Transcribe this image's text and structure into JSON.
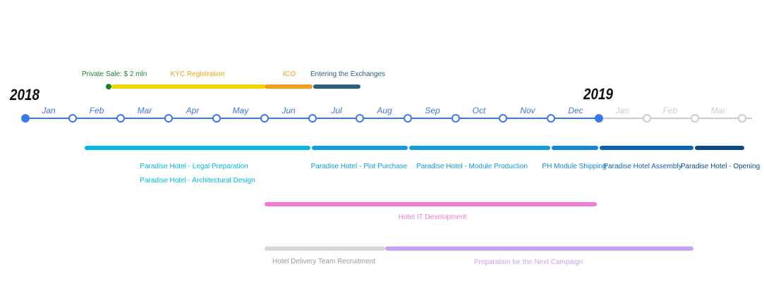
{
  "years": {
    "start": "2018",
    "end": "2019"
  },
  "months": [
    {
      "label": "Jan",
      "active": true
    },
    {
      "label": "Feb",
      "active": true
    },
    {
      "label": "Mar",
      "active": true
    },
    {
      "label": "Apr",
      "active": true
    },
    {
      "label": "May",
      "active": true
    },
    {
      "label": "Jun",
      "active": true
    },
    {
      "label": "Jul",
      "active": true
    },
    {
      "label": "Aug",
      "active": true
    },
    {
      "label": "Sep",
      "active": true
    },
    {
      "label": "Oct",
      "active": true
    },
    {
      "label": "Nov",
      "active": true
    },
    {
      "label": "Dec",
      "active": true
    },
    {
      "label": "Jan",
      "active": false
    },
    {
      "label": "Feb",
      "active": false
    },
    {
      "label": "Mar",
      "active": false
    }
  ],
  "colors": {
    "axis_active": "#3b78e7",
    "axis_inactive": "#cccccc",
    "year_label": "#111111"
  },
  "token_sale": [
    {
      "label": "Private Sale:  $ 2 mln",
      "color": "#1e7d3a",
      "label_color": "#1e7d3a"
    },
    {
      "label": "KYC Registration",
      "color": "#f2d400",
      "label_color": "#e8a317"
    },
    {
      "label": "ICO",
      "color": "#f39c1f",
      "label_color": "#f39c1f"
    },
    {
      "label": "Entering the Exchanges",
      "color": "#2c5f7c",
      "label_color": "#2c5f7c"
    }
  ],
  "hotel_phases": [
    {
      "labels": [
        "Paradise Hotel - Legal Preparation",
        "Paradise Hotel - Architectural Design"
      ],
      "color": "#00b8e6"
    },
    {
      "labels": [
        "Paradise Hotel - Plot Purchase"
      ],
      "color": "#0f9de0"
    },
    {
      "labels": [
        "Paradise Hotel - Module Production"
      ],
      "color": "#0f9de0"
    },
    {
      "labels": [
        "PH Module Shipping"
      ],
      "color": "#1387d8"
    },
    {
      "labels": [
        "Paradise Hotel Assembly"
      ],
      "color": "#0b63b5"
    },
    {
      "labels": [
        "Paradise Hotel - Opening"
      ],
      "color": "#0a4a8a"
    }
  ],
  "it_development": {
    "label": "Hotel IT Development",
    "color": "#f479d6"
  },
  "recruitment": [
    {
      "label": "Hotel Delivery Team Recruitment",
      "color": "#d6d6d6",
      "label_color": "#9a9a9a"
    },
    {
      "label": "Preparation for the Next Campaign",
      "color": "#c8a3f5",
      "label_color": "#c8a3f5"
    }
  ]
}
